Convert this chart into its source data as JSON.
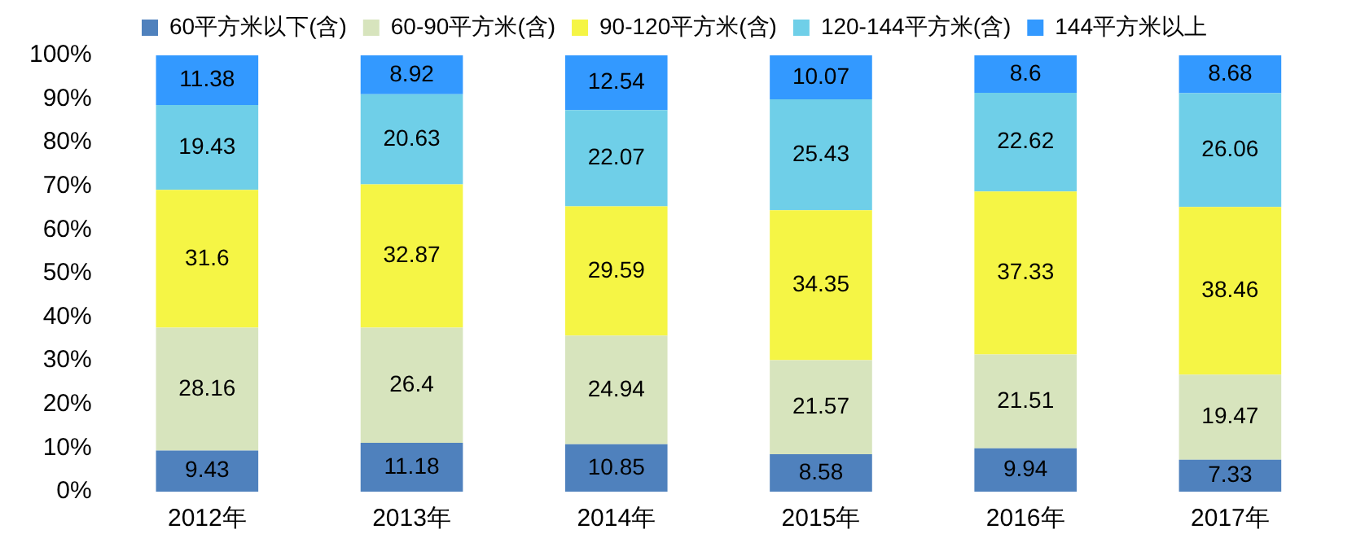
{
  "chart_data": {
    "type": "bar",
    "stacked": true,
    "categories": [
      "2012年",
      "2013年",
      "2014年",
      "2015年",
      "2016年",
      "2017年"
    ],
    "series": [
      {
        "name": "60平方米以下(含)",
        "color": "#4f81bd",
        "values": [
          9.43,
          11.18,
          10.85,
          8.58,
          9.94,
          7.33
        ]
      },
      {
        "name": "60-90平方米(含)",
        "color": "#d7e4bd",
        "values": [
          28.16,
          26.4,
          24.94,
          21.57,
          21.51,
          19.47
        ]
      },
      {
        "name": "90-120平方米(含)",
        "color": "#f5f545",
        "values": [
          31.6,
          32.87,
          29.59,
          34.35,
          37.33,
          38.46
        ]
      },
      {
        "name": "120-144平方米(含)",
        "color": "#6fcfe8",
        "values": [
          19.43,
          20.63,
          22.07,
          25.43,
          22.62,
          26.06
        ]
      },
      {
        "name": "144平方米以上",
        "color": "#3399ff",
        "values": [
          11.38,
          8.92,
          12.54,
          10.07,
          8.6,
          8.68
        ]
      }
    ],
    "ylim": [
      0,
      100
    ],
    "yticks": [
      {
        "value": 0,
        "label": "0%"
      },
      {
        "value": 10,
        "label": "10%"
      },
      {
        "value": 20,
        "label": "20%"
      },
      {
        "value": 30,
        "label": "30%"
      },
      {
        "value": 40,
        "label": "40%"
      },
      {
        "value": 50,
        "label": "50%"
      },
      {
        "value": 60,
        "label": "60%"
      },
      {
        "value": 70,
        "label": "70%"
      },
      {
        "value": 80,
        "label": "80%"
      },
      {
        "value": 90,
        "label": "90%"
      },
      {
        "value": 100,
        "label": "100%"
      }
    ],
    "grid": false,
    "legend": "top",
    "data_labels": true
  }
}
